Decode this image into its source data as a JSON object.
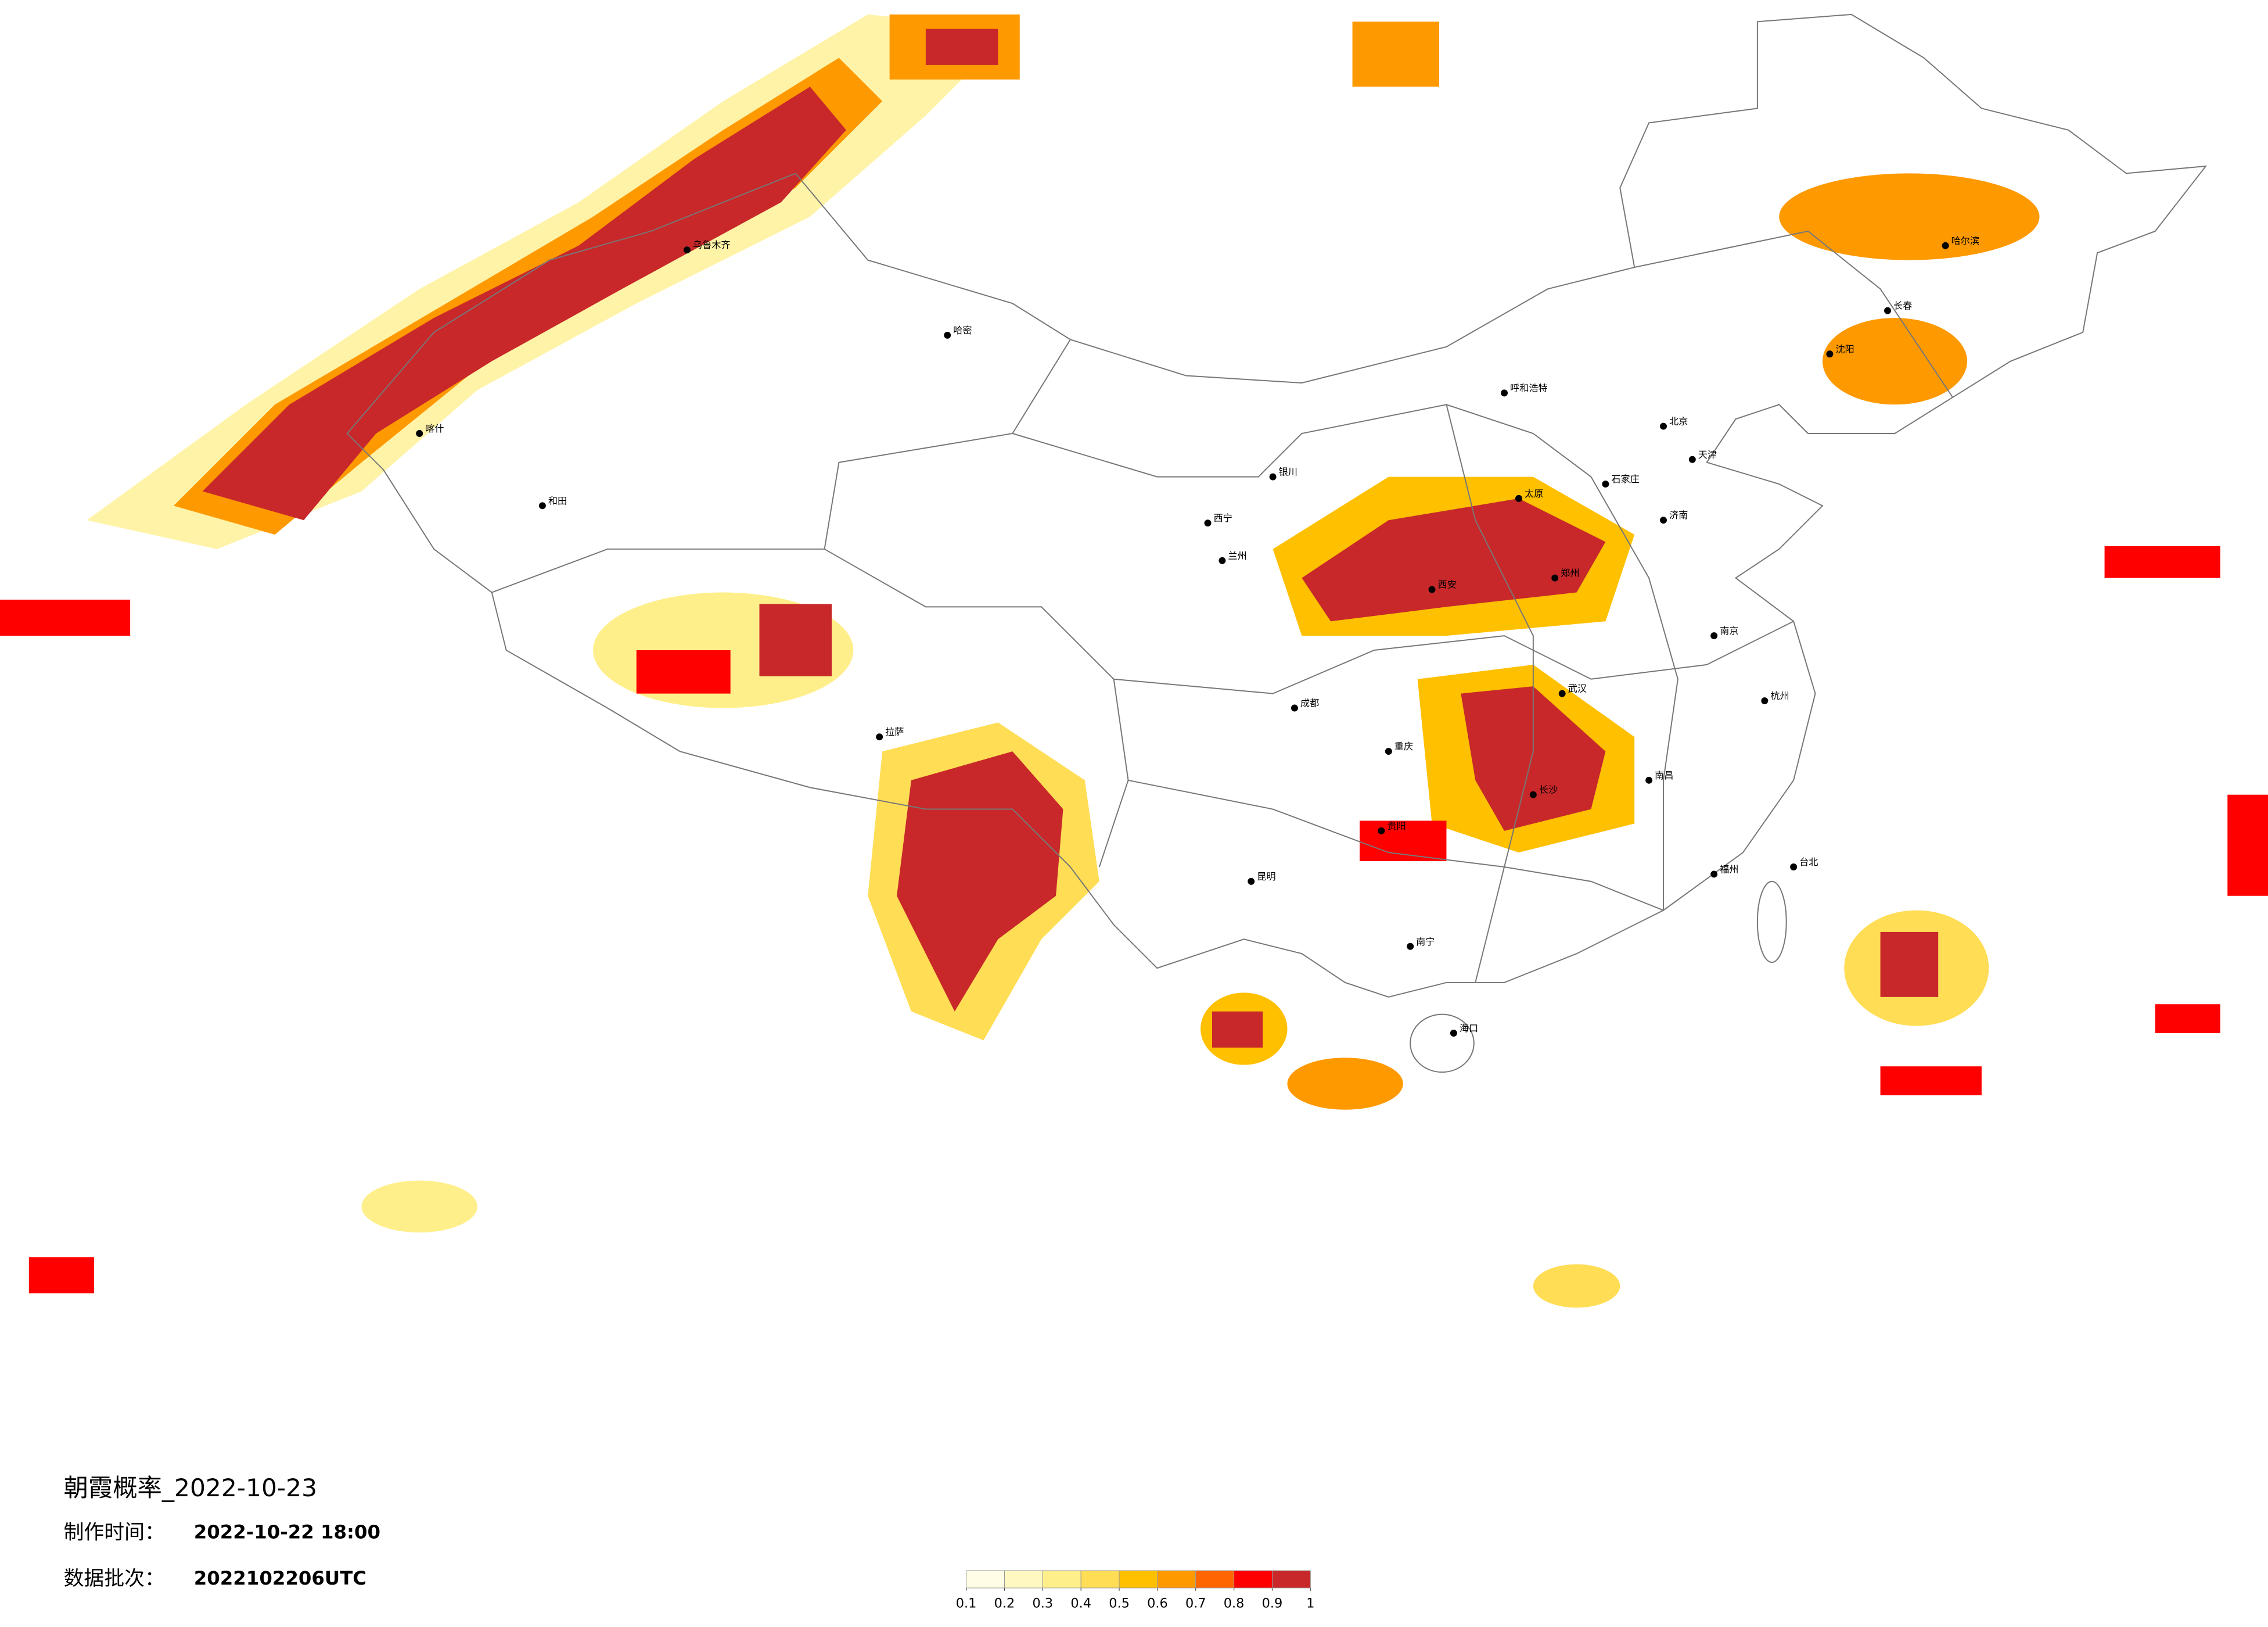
{
  "title": "朝霞概率_2022-10-23",
  "production_time": {
    "label": "制作时间：",
    "value": "2022-10-22 18:00"
  },
  "batch": {
    "label": "数据批次：",
    "value": "2022102206UTC"
  },
  "legend": {
    "ticks": [
      0.1,
      0.2,
      0.3,
      0.4,
      0.5,
      0.6,
      0.7,
      0.8,
      0.9,
      1
    ],
    "colors": [
      "#fffde6",
      "#fff8c0",
      "#ffef8a",
      "#ffdd55",
      "#ffc000",
      "#ff9900",
      "#ff6600",
      "#ff0000",
      "#c8282a"
    ]
  },
  "cities": [
    "乌鲁木齐",
    "和田",
    "哈密",
    "拉萨",
    "西宁",
    "兰州",
    "银川",
    "呼和浩特",
    "北京",
    "天津",
    "石家庄",
    "太原",
    "郑州",
    "西安",
    "成都",
    "重庆",
    "贵阳",
    "昆明",
    "南宁",
    "长沙",
    "武汉",
    "南昌",
    "福州",
    "杭州",
    "南京",
    "济南",
    "沈阳",
    "长春",
    "哈尔滨",
    "海口",
    "台北",
    "喀什"
  ]
}
